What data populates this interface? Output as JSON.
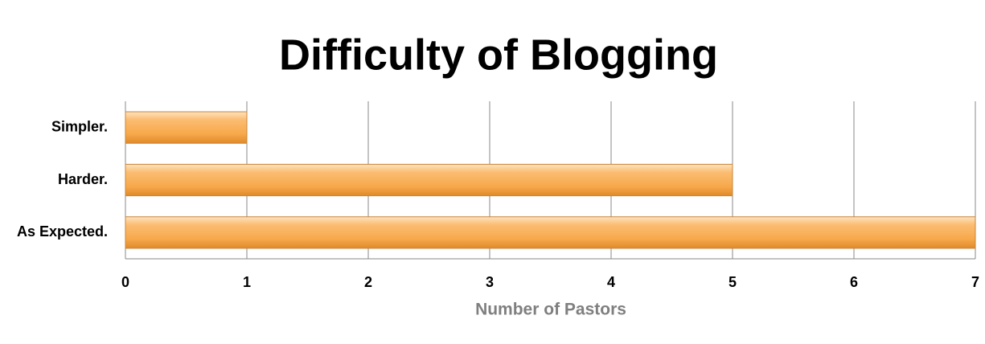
{
  "chart_data": {
    "type": "barh",
    "title": "Difficulty of Blogging",
    "categories": [
      "Simpler.",
      "Harder.",
      "As Expected."
    ],
    "values": [
      1,
      5,
      7
    ],
    "color": "#f7a94b",
    "xlabel": "Number of Pastors",
    "xlim": [
      0,
      7
    ],
    "xticks": [
      0,
      1,
      2,
      3,
      4,
      5,
      6,
      7
    ],
    "grid": true
  }
}
